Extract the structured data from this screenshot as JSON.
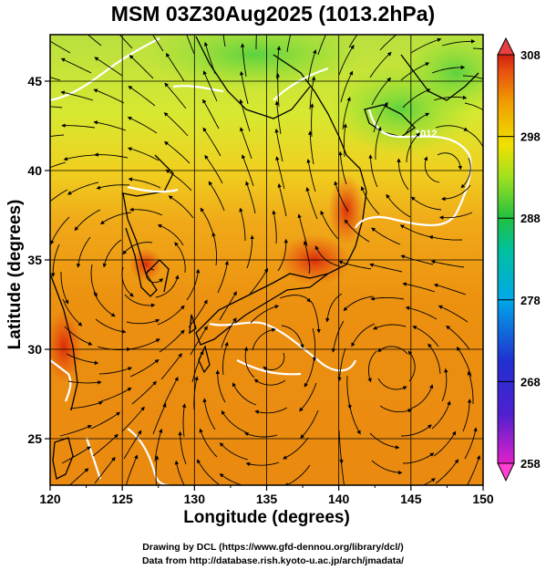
{
  "title": "MSM 03Z30Aug2025 (1013.2hPa)",
  "axes": {
    "xlabel": "Longitude (degrees)",
    "ylabel": "Latitude  (degrees)",
    "xticks": [
      "120",
      "125",
      "130",
      "135",
      "140",
      "145",
      "150"
    ],
    "yticks": [
      "25",
      "30",
      "35",
      "40",
      "45"
    ],
    "xlim": [
      120,
      150
    ],
    "ylim": [
      22.4,
      47.6
    ]
  },
  "colorbar": {
    "ticks": [
      "258",
      "268",
      "278",
      "288",
      "298",
      "308"
    ],
    "range": [
      258,
      308
    ],
    "colors": [
      "#e020c8",
      "#2030d0",
      "#00a8e8",
      "#00c0a0",
      "#20c040",
      "#a0e020",
      "#f0e000",
      "#f0a000",
      "#e85010",
      "#d02010"
    ]
  },
  "credits": [
    "Drawing by DCL (https://www.gfd-dennou.org/library/dcl/)",
    "Data from http://database.rish.kyoto-u.ac.jp/arch/jmadata/"
  ],
  "contour_label": "1012"
}
